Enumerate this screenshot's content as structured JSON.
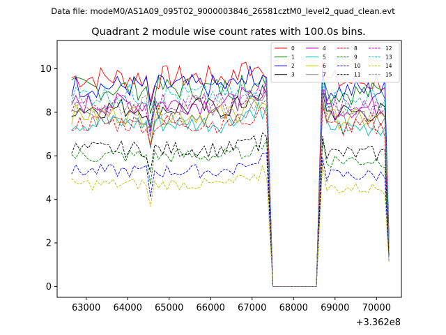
{
  "chart_data": {
    "type": "line",
    "suptitle": "Data file: modeM0/AS1A09_095T02_9000003846_26581cztM0_level2_quad_clean.evt",
    "title": "Quadrant 2 module wise count rates with 100.0s bins.",
    "x_offset_label": "+3.362e8",
    "xlim": [
      62300,
      70600
    ],
    "ylim": [
      -0.5,
      11.3
    ],
    "xticks": [
      63000,
      64000,
      65000,
      66000,
      67000,
      68000,
      69000,
      70000
    ],
    "xtick_labels": [
      "63000",
      "64000",
      "65000",
      "66000",
      "67000",
      "68000",
      "69000",
      "70000"
    ],
    "yticks": [
      0,
      2,
      4,
      6,
      8,
      10
    ],
    "ytick_labels": [
      "0",
      "2",
      "4",
      "6",
      "8",
      "10"
    ],
    "gap": {
      "start": 67500,
      "end": 68550,
      "value": 0
    },
    "segments": [
      {
        "start": 62650,
        "end": 67350
      },
      {
        "start": 68700,
        "end": 70300
      }
    ],
    "legend_location": "upper right",
    "series": [
      {
        "name": "0",
        "color": "#ff0000",
        "style": "solid",
        "level": 9.6
      },
      {
        "name": "1",
        "color": "#008000",
        "style": "solid",
        "level": 9.1
      },
      {
        "name": "2",
        "color": "#0000ff",
        "style": "solid",
        "level": 9.2
      },
      {
        "name": "3",
        "color": "#000000",
        "style": "solid",
        "level": 8.2
      },
      {
        "name": "4",
        "color": "#bf00bf",
        "style": "solid",
        "level": 8.4
      },
      {
        "name": "5",
        "color": "#00bfbf",
        "style": "solid",
        "level": 7.5
      },
      {
        "name": "6",
        "color": "#bfbf00",
        "style": "solid",
        "level": 7.9
      },
      {
        "name": "7",
        "color": "#808080",
        "style": "solid",
        "level": 7.8
      },
      {
        "name": "8",
        "color": "#ff0000",
        "style": "dashed",
        "level": 7.5
      },
      {
        "name": "9",
        "color": "#008000",
        "style": "dashed",
        "level": 6.0
      },
      {
        "name": "10",
        "color": "#0000ff",
        "style": "dashed",
        "level": 5.3
      },
      {
        "name": "11",
        "color": "#000000",
        "style": "dashed",
        "level": 6.3
      },
      {
        "name": "12",
        "color": "#bf00bf",
        "style": "dashed",
        "level": 8.4
      },
      {
        "name": "13",
        "color": "#00bfbf",
        "style": "dashed",
        "level": 8.8
      },
      {
        "name": "14",
        "color": "#bfbf00",
        "style": "dashed",
        "level": 4.7
      },
      {
        "name": "15",
        "color": "#808080",
        "style": "dashed",
        "level": 8.3
      }
    ]
  }
}
